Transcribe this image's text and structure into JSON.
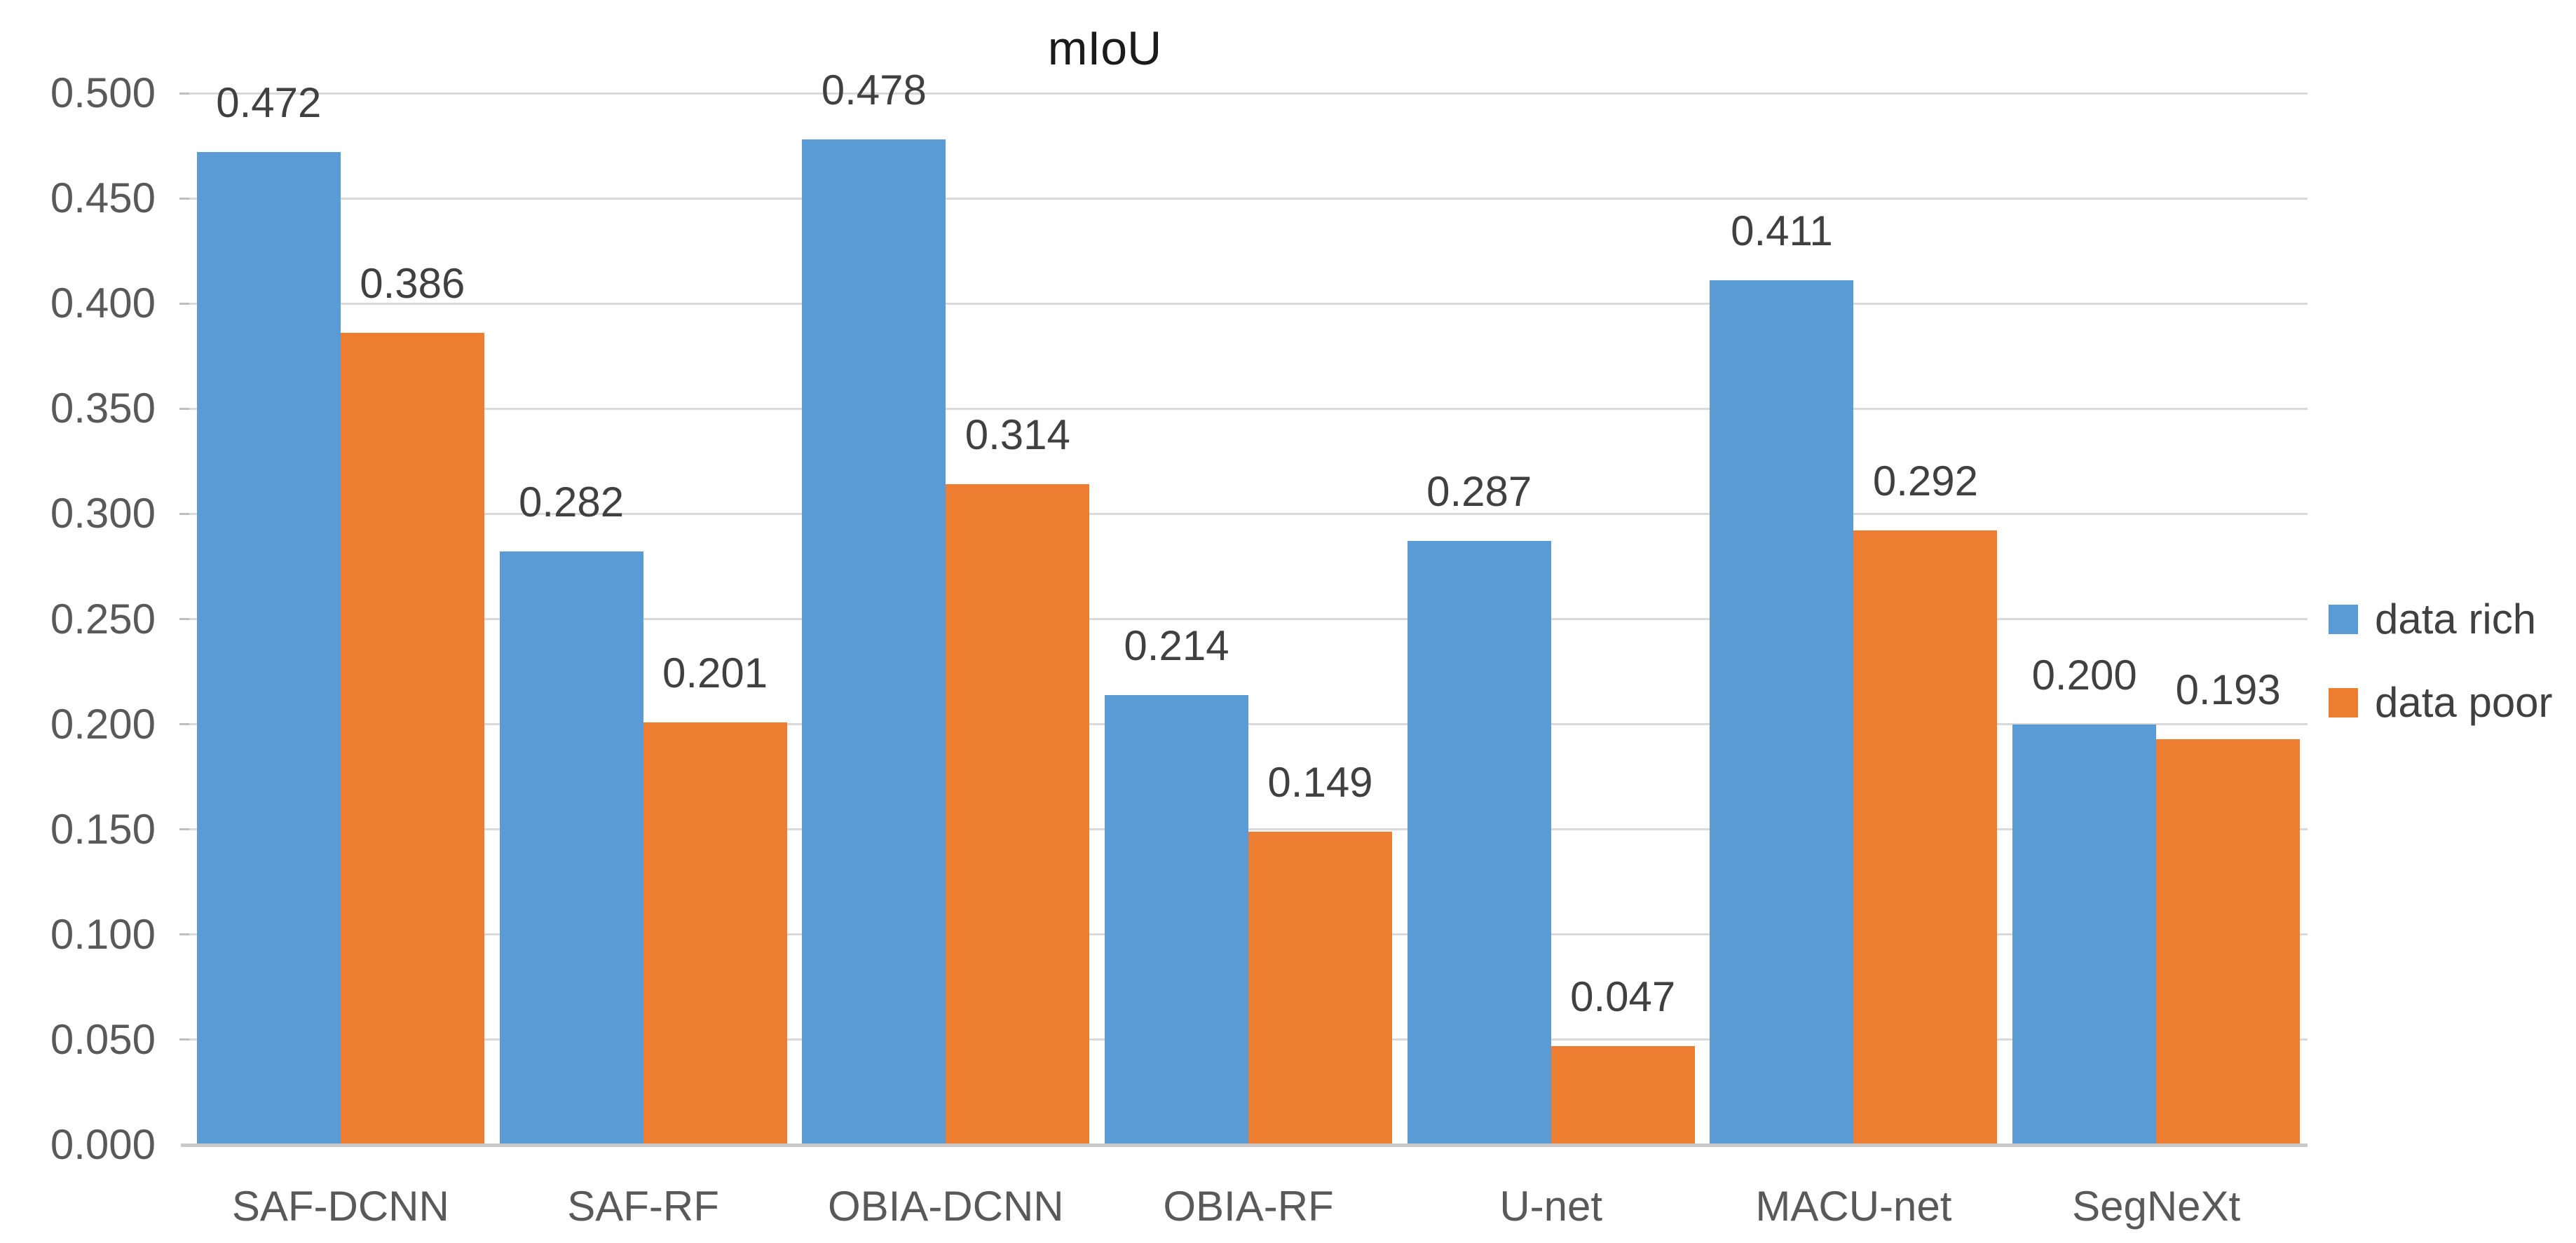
{
  "chart_data": {
    "type": "bar",
    "title": "mIoU",
    "categories": [
      "SAF-DCNN",
      "SAF-RF",
      "OBIA-DCNN",
      "OBIA-RF",
      "U-net",
      "MACU-net",
      "SegNeXt"
    ],
    "series": [
      {
        "name": "data rich",
        "color": "#5B9BD5",
        "values": [
          0.472,
          0.282,
          0.478,
          0.214,
          0.287,
          0.411,
          0.2
        ],
        "labels": [
          "0.472",
          "0.282",
          "0.478",
          "0.214",
          "0.287",
          "0.411",
          "0.200"
        ]
      },
      {
        "name": "data poor",
        "color": "#ED7D31",
        "values": [
          0.386,
          0.201,
          0.314,
          0.149,
          0.047,
          0.292,
          0.193
        ],
        "labels": [
          "0.386",
          "0.201",
          "0.314",
          "0.149",
          "0.047",
          "0.292",
          "0.193"
        ]
      }
    ],
    "y_axis": {
      "min": 0,
      "max": 0.5,
      "step": 0.05,
      "tick_labels": [
        "0.000",
        "0.050",
        "0.100",
        "0.150",
        "0.200",
        "0.250",
        "0.300",
        "0.350",
        "0.400",
        "0.450",
        "0.500"
      ]
    },
    "xlabel": "",
    "ylabel": "",
    "grid": true,
    "legend_position": "right",
    "colors": {
      "gridline": "#D9D9D9",
      "axis_line": "#C8C8C8",
      "tick_text": "#595959",
      "data_label_text": "#404040",
      "title_text": "#1A1A1A"
    }
  }
}
